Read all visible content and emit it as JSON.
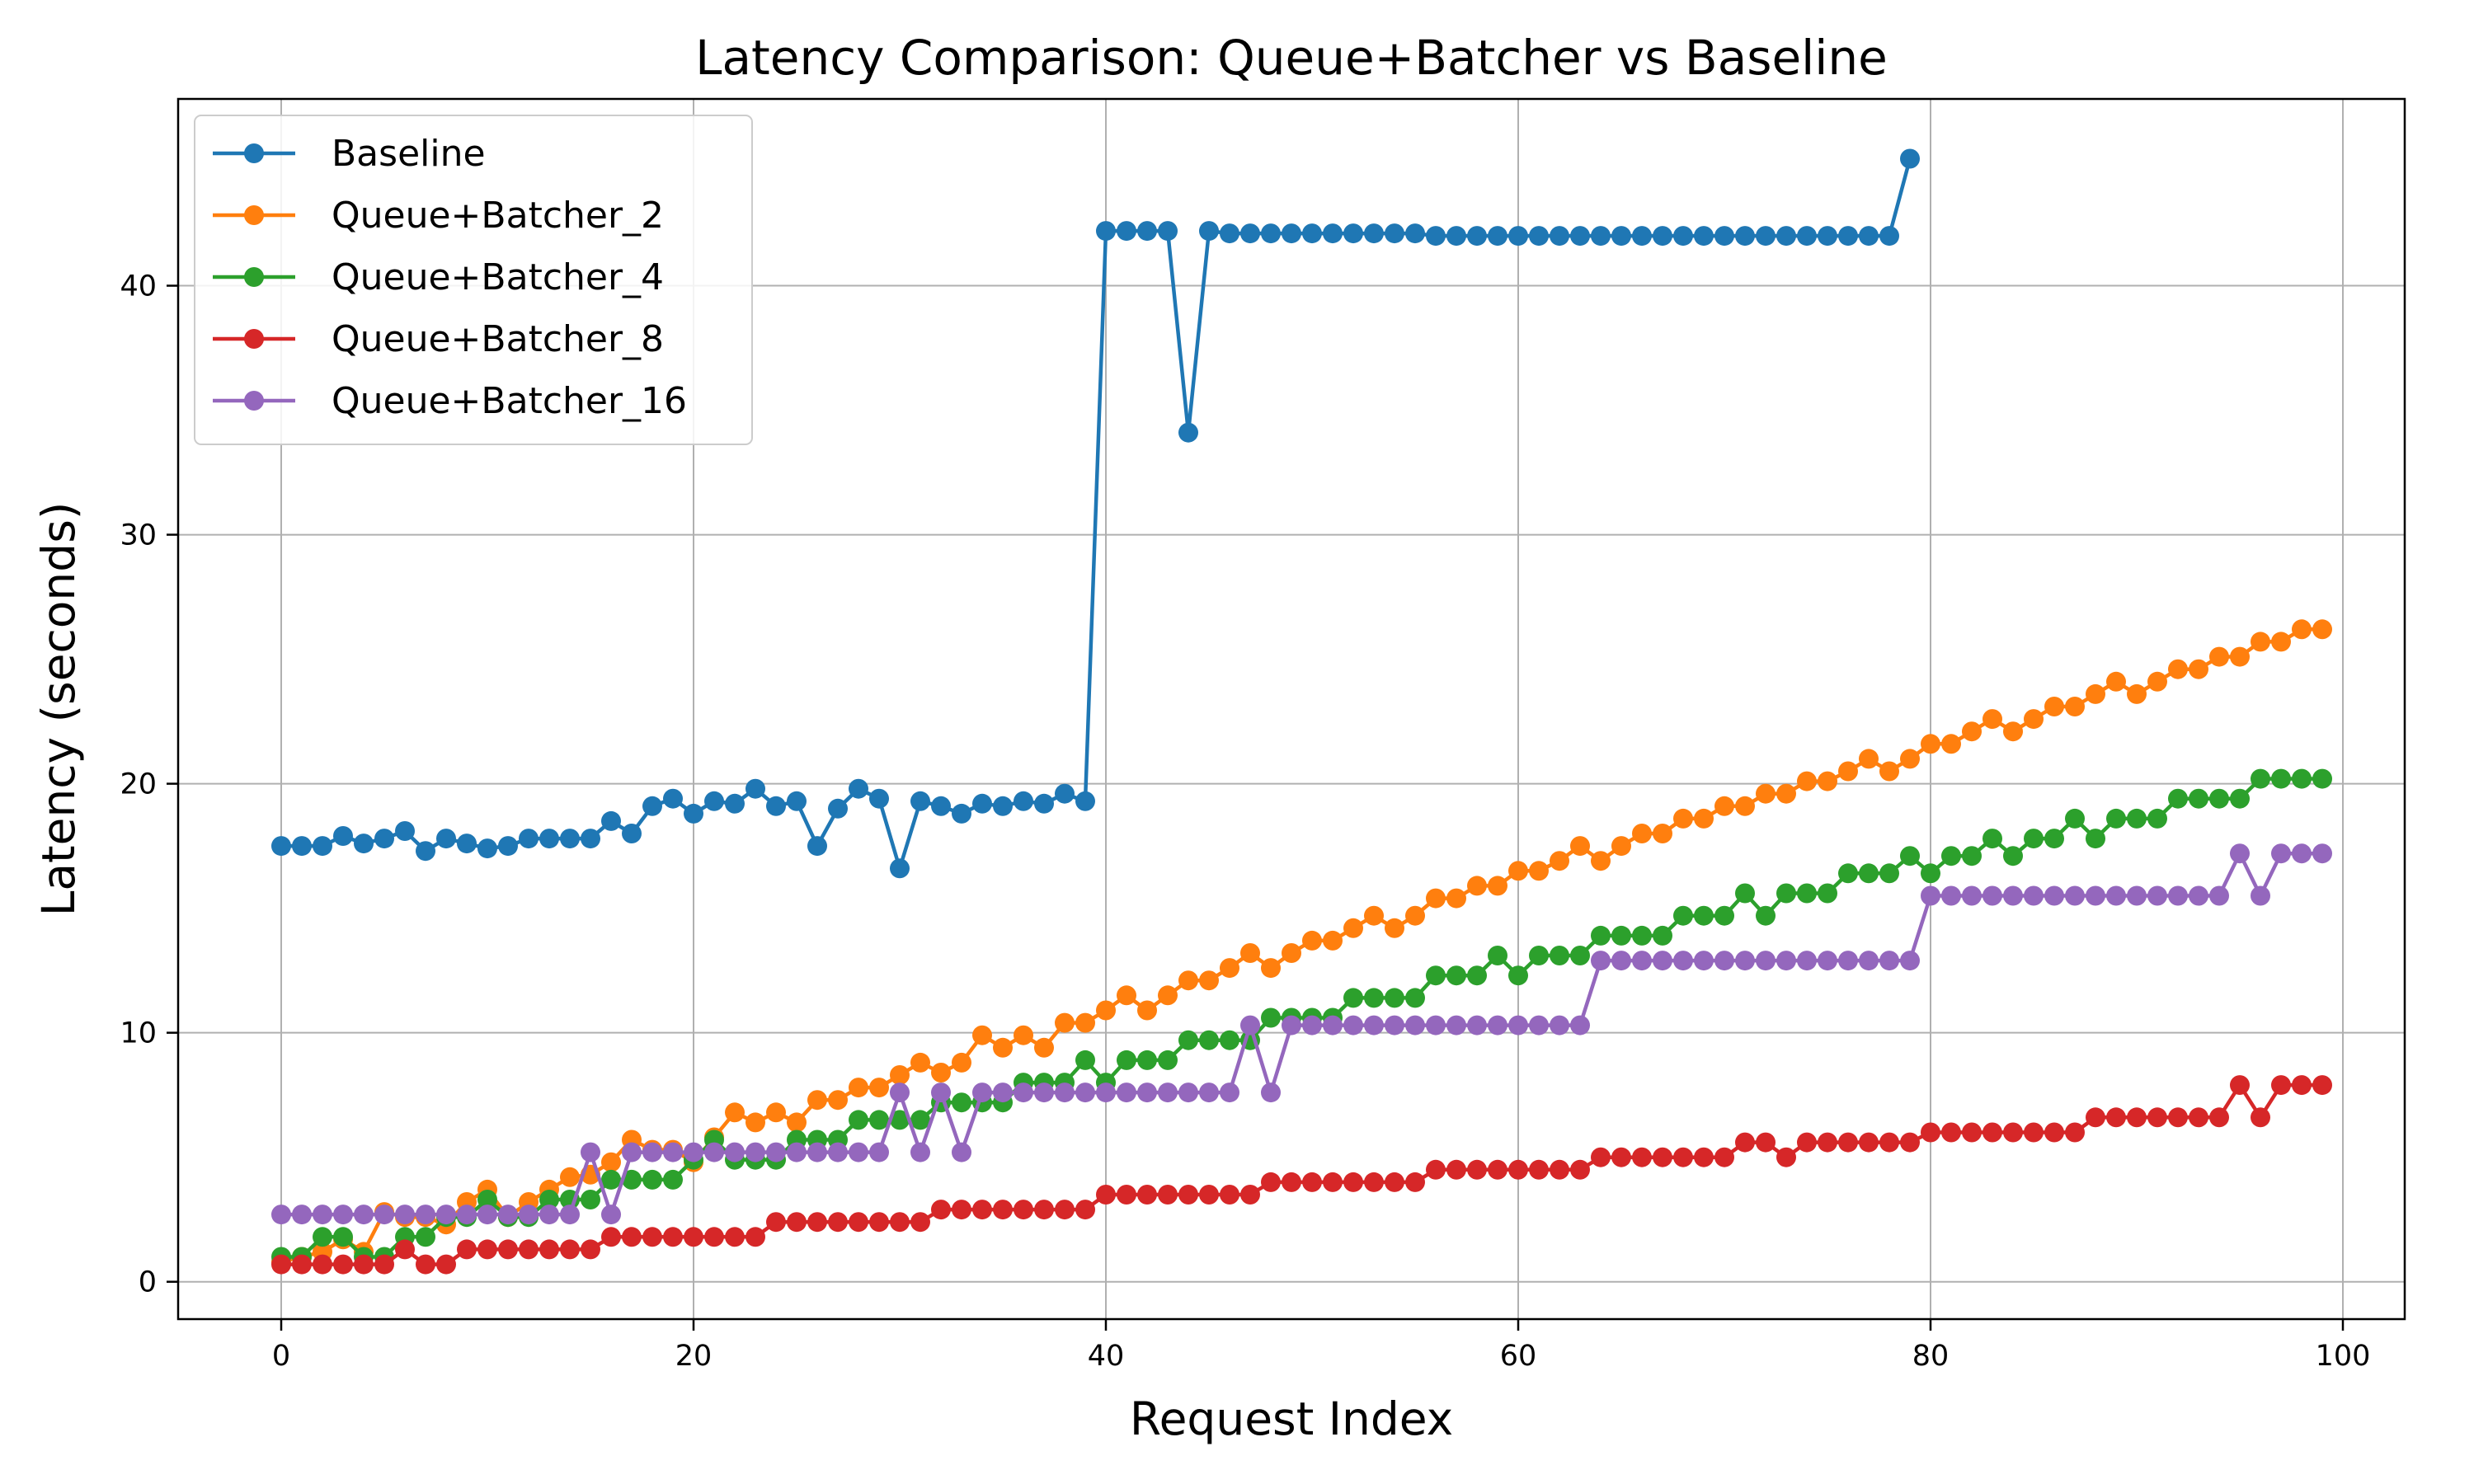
{
  "chart_data": {
    "type": "line",
    "title": "Latency Comparison: Queue+Batcher vs Baseline",
    "xlabel": "Request Index",
    "ylabel": "Latency (seconds)",
    "xlim": [
      -5,
      103
    ],
    "ylim": [
      -1.5,
      47.5
    ],
    "xticks": [
      0,
      20,
      40,
      60,
      80,
      100
    ],
    "yticks": [
      0,
      10,
      20,
      30,
      40
    ],
    "grid": true,
    "legend_position": "top-left",
    "series": [
      {
        "name": "Baseline",
        "color": "#1f77b4",
        "x_start": 0,
        "values": [
          17.5,
          17.5,
          17.5,
          17.9,
          17.6,
          17.8,
          18.1,
          17.3,
          17.8,
          17.6,
          17.4,
          17.5,
          17.8,
          17.8,
          17.8,
          17.8,
          18.5,
          18.0,
          19.1,
          19.4,
          18.8,
          19.3,
          19.2,
          19.8,
          19.1,
          19.3,
          17.5,
          19.0,
          19.8,
          19.4,
          16.6,
          19.3,
          19.1,
          18.8,
          19.2,
          19.1,
          19.3,
          19.2,
          19.6,
          19.3,
          42.2,
          42.2,
          42.2,
          42.2,
          34.1,
          42.2,
          42.1,
          42.1,
          42.1,
          42.1,
          42.1,
          42.1,
          42.1,
          42.1,
          42.1,
          42.1,
          42.0,
          42.0,
          42.0,
          42.0,
          42.0,
          42.0,
          42.0,
          42.0,
          42.0,
          42.0,
          42.0,
          42.0,
          42.0,
          42.0,
          42.0,
          42.0,
          42.0,
          42.0,
          42.0,
          42.0,
          42.0,
          42.0,
          42.0,
          45.1
        ]
      },
      {
        "name": "Queue+Batcher_2",
        "color": "#ff7f0e",
        "x_start": 0,
        "values": [
          0.8,
          1.0,
          1.2,
          1.7,
          1.2,
          2.8,
          2.6,
          2.6,
          2.3,
          3.2,
          3.7,
          2.6,
          3.2,
          3.7,
          4.2,
          4.3,
          4.8,
          5.7,
          5.3,
          5.3,
          4.8,
          5.8,
          6.8,
          6.4,
          6.8,
          6.4,
          7.3,
          7.3,
          7.8,
          7.8,
          8.3,
          8.8,
          8.4,
          8.8,
          9.9,
          9.4,
          9.9,
          9.4,
          10.4,
          10.4,
          10.9,
          11.5,
          10.9,
          11.5,
          12.1,
          12.1,
          12.6,
          13.2,
          12.6,
          13.2,
          13.7,
          13.7,
          14.2,
          14.7,
          14.2,
          14.7,
          15.4,
          15.4,
          15.9,
          15.9,
          16.5,
          16.5,
          16.9,
          17.5,
          16.9,
          17.5,
          18.0,
          18.0,
          18.6,
          18.6,
          19.1,
          19.1,
          19.6,
          19.6,
          20.1,
          20.1,
          20.5,
          21.0,
          20.5,
          21.0,
          21.6,
          21.6,
          22.1,
          22.6,
          22.1,
          22.6,
          23.1,
          23.1,
          23.6,
          24.1,
          23.6,
          24.1,
          24.6,
          24.6,
          25.1,
          25.1,
          25.7,
          25.7,
          26.2,
          26.2
        ]
      },
      {
        "name": "Queue+Batcher_4",
        "color": "#2ca02c",
        "x_start": 0,
        "values": [
          1.0,
          1.0,
          1.8,
          1.8,
          1.0,
          1.0,
          1.8,
          1.8,
          2.6,
          2.6,
          3.3,
          2.6,
          2.6,
          3.3,
          3.3,
          3.3,
          4.1,
          4.1,
          4.1,
          4.1,
          4.9,
          5.7,
          4.9,
          4.9,
          4.9,
          5.7,
          5.7,
          5.7,
          6.5,
          6.5,
          6.5,
          6.5,
          7.2,
          7.2,
          7.2,
          7.2,
          8.0,
          8.0,
          8.0,
          8.9,
          8.0,
          8.9,
          8.9,
          8.9,
          9.7,
          9.7,
          9.7,
          9.7,
          10.6,
          10.6,
          10.6,
          10.6,
          11.4,
          11.4,
          11.4,
          11.4,
          12.3,
          12.3,
          12.3,
          13.1,
          12.3,
          13.1,
          13.1,
          13.1,
          13.9,
          13.9,
          13.9,
          13.9,
          14.7,
          14.7,
          14.7,
          15.6,
          14.7,
          15.6,
          15.6,
          15.6,
          16.4,
          16.4,
          16.4,
          17.1,
          16.4,
          17.1,
          17.1,
          17.8,
          17.1,
          17.8,
          17.8,
          18.6,
          17.8,
          18.6,
          18.6,
          18.6,
          19.4,
          19.4,
          19.4,
          19.4,
          20.2,
          20.2,
          20.2,
          20.2
        ]
      },
      {
        "name": "Queue+Batcher_8",
        "color": "#d62728",
        "x_start": 0,
        "values": [
          0.7,
          0.7,
          0.7,
          0.7,
          0.7,
          0.7,
          1.3,
          0.7,
          0.7,
          1.3,
          1.3,
          1.3,
          1.3,
          1.3,
          1.3,
          1.3,
          1.8,
          1.8,
          1.8,
          1.8,
          1.8,
          1.8,
          1.8,
          1.8,
          2.4,
          2.4,
          2.4,
          2.4,
          2.4,
          2.4,
          2.4,
          2.4,
          2.9,
          2.9,
          2.9,
          2.9,
          2.9,
          2.9,
          2.9,
          2.9,
          3.5,
          3.5,
          3.5,
          3.5,
          3.5,
          3.5,
          3.5,
          3.5,
          4.0,
          4.0,
          4.0,
          4.0,
          4.0,
          4.0,
          4.0,
          4.0,
          4.5,
          4.5,
          4.5,
          4.5,
          4.5,
          4.5,
          4.5,
          4.5,
          5.0,
          5.0,
          5.0,
          5.0,
          5.0,
          5.0,
          5.0,
          5.6,
          5.6,
          5.0,
          5.6,
          5.6,
          5.6,
          5.6,
          5.6,
          5.6,
          6.0,
          6.0,
          6.0,
          6.0,
          6.0,
          6.0,
          6.0,
          6.0,
          6.6,
          6.6,
          6.6,
          6.6,
          6.6,
          6.6,
          6.6,
          7.9,
          6.6,
          7.9,
          7.9,
          7.9
        ]
      },
      {
        "name": "Queue+Batcher_16",
        "color": "#9467bd",
        "x_start": 0,
        "values": [
          2.7,
          2.7,
          2.7,
          2.7,
          2.7,
          2.7,
          2.7,
          2.7,
          2.7,
          2.7,
          2.7,
          2.7,
          2.7,
          2.7,
          2.7,
          5.2,
          2.7,
          5.2,
          5.2,
          5.2,
          5.2,
          5.2,
          5.2,
          5.2,
          5.2,
          5.2,
          5.2,
          5.2,
          5.2,
          5.2,
          7.6,
          5.2,
          7.6,
          5.2,
          7.6,
          7.6,
          7.6,
          7.6,
          7.6,
          7.6,
          7.6,
          7.6,
          7.6,
          7.6,
          7.6,
          7.6,
          7.6,
          10.3,
          7.6,
          10.3,
          10.3,
          10.3,
          10.3,
          10.3,
          10.3,
          10.3,
          10.3,
          10.3,
          10.3,
          10.3,
          10.3,
          10.3,
          10.3,
          10.3,
          12.9,
          12.9,
          12.9,
          12.9,
          12.9,
          12.9,
          12.9,
          12.9,
          12.9,
          12.9,
          12.9,
          12.9,
          12.9,
          12.9,
          12.9,
          12.9,
          15.5,
          15.5,
          15.5,
          15.5,
          15.5,
          15.5,
          15.5,
          15.5,
          15.5,
          15.5,
          15.5,
          15.5,
          15.5,
          15.5,
          15.5,
          17.2,
          15.5,
          17.2,
          17.2,
          17.2
        ]
      }
    ]
  }
}
